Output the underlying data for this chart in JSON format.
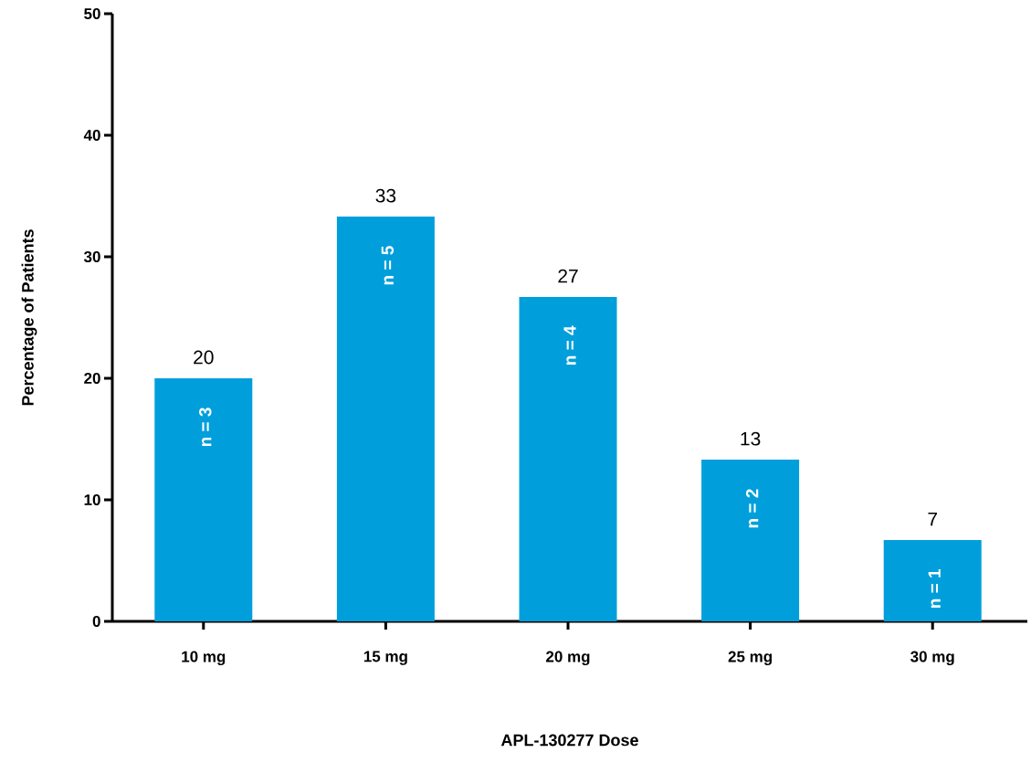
{
  "chart_data": {
    "type": "bar",
    "xlabel": "APL-130277 Dose",
    "ylabel": "Percentage of Patients",
    "categories": [
      "10 mg",
      "15 mg",
      "20 mg",
      "25 mg",
      "30 mg"
    ],
    "values": [
      20,
      33.3,
      26.7,
      13.3,
      6.7
    ],
    "value_labels": [
      "20",
      "33",
      "27",
      "13",
      "7"
    ],
    "color": "#009fdb",
    "ylim": [
      0,
      50
    ],
    "yticks": [
      0,
      10,
      20,
      30,
      40,
      50
    ],
    "annotations": [
      "n = 3",
      "n = 5",
      "n = 4",
      "n = 2",
      "n = 1"
    ]
  }
}
